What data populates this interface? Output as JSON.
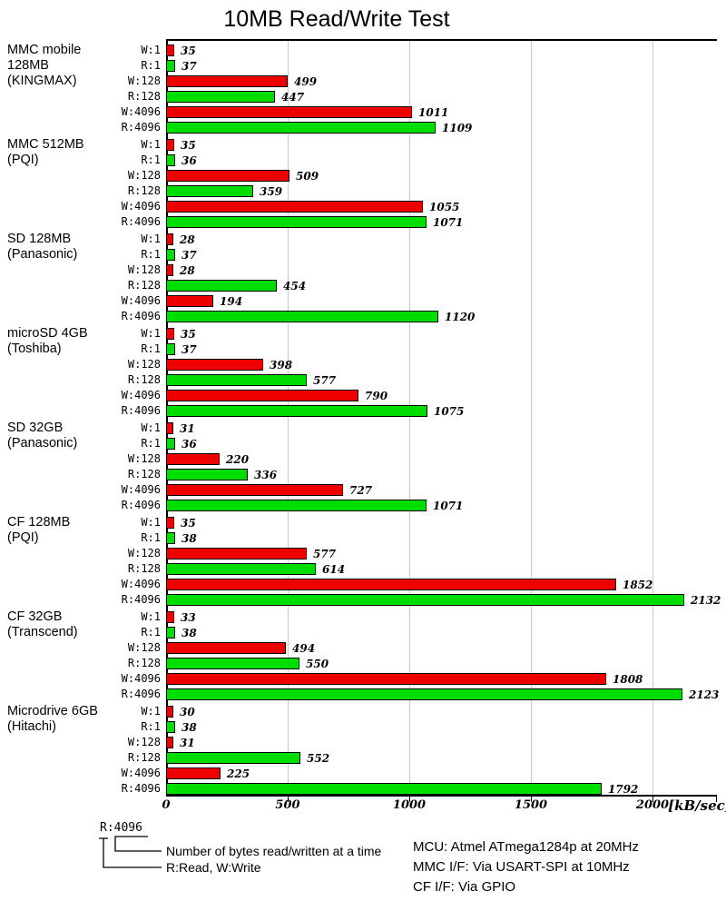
{
  "chart_data": {
    "type": "bar",
    "orientation": "horizontal",
    "title": "10MB Read/Write Test",
    "xlabel_unit": "[kB/sec]",
    "x_ticks": [
      0,
      500,
      1000,
      1500,
      2000
    ],
    "xlim": [
      0,
      2260
    ],
    "grid": "vertical-lines",
    "bar_labels": [
      "W:1",
      "R:1",
      "W:128",
      "R:128",
      "W:4096",
      "R:4096"
    ],
    "colors": {
      "write": "#ee0000",
      "read": "#00dd00",
      "gridline": "#c8c8c8",
      "axis": "#000000"
    },
    "groups": [
      {
        "label_lines": [
          "MMC mobile",
          "128MB",
          "(KINGMAX)"
        ],
        "values": [
          35,
          37,
          499,
          447,
          1011,
          1109
        ]
      },
      {
        "label_lines": [
          "MMC 512MB",
          "(PQI)"
        ],
        "values": [
          35,
          36,
          509,
          359,
          1055,
          1071
        ]
      },
      {
        "label_lines": [
          "SD 128MB",
          "(Panasonic)"
        ],
        "values": [
          28,
          37,
          28,
          454,
          194,
          1120
        ]
      },
      {
        "label_lines": [
          "microSD 4GB",
          "(Toshiba)"
        ],
        "values": [
          35,
          37,
          398,
          577,
          790,
          1075
        ]
      },
      {
        "label_lines": [
          "SD 32GB",
          "(Panasonic)"
        ],
        "values": [
          31,
          36,
          220,
          336,
          727,
          1071
        ]
      },
      {
        "label_lines": [
          "CF 128MB",
          "(PQI)"
        ],
        "values": [
          35,
          38,
          577,
          614,
          1852,
          2132
        ]
      },
      {
        "label_lines": [
          "CF 32GB",
          "(Transcend)"
        ],
        "values": [
          33,
          38,
          494,
          550,
          1808,
          2123
        ]
      },
      {
        "label_lines": [
          "Microdrive 6GB",
          "(Hitachi)"
        ],
        "values": [
          30,
          38,
          31,
          552,
          225,
          1792
        ]
      }
    ]
  },
  "legend": {
    "sample": "R:4096",
    "bytes_note": "Number of bytes read/written at a time",
    "rw_note": "R:Read, W:Write"
  },
  "info": {
    "mcu": "MCU: Atmel ATmega1284p at 20MHz",
    "mmc_if": "MMC I/F: Via USART-SPI at 10MHz",
    "cf_if": "CF I/F: Via GPIO"
  }
}
